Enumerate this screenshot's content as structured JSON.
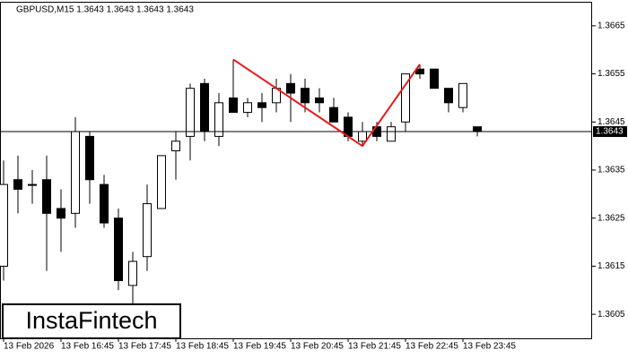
{
  "chart_data": {
    "type": "candlestick",
    "title": "GBPUSD,M15  1.3643 1.3643 1.3643 1.3643",
    "logo": "InstaFintech",
    "categories": [
      "13 Feb 2026",
      null,
      null,
      null,
      "13 Feb 16:45",
      null,
      null,
      null,
      "13 Feb 17:45",
      null,
      null,
      null,
      "13 Feb 18:45",
      null,
      null,
      null,
      "13 Feb 19:45",
      null,
      null,
      null,
      "13 Feb 20:45",
      null,
      null,
      null,
      "13 Feb 21:45",
      null,
      null,
      null,
      "13 Feb 22:45",
      null,
      null,
      null,
      "13 Feb 23:45",
      null
    ],
    "series": [
      {
        "color": "#000000",
        "up_color": "#ffffff",
        "open": [
          1.3615,
          1.3633,
          1.3632,
          1.3633,
          1.3627,
          1.3626,
          1.3642,
          1.3632,
          1.3625,
          1.3611,
          1.3617,
          1.3627,
          1.3639,
          1.3642,
          1.3653,
          1.3642,
          1.365,
          1.3647,
          1.3649,
          1.3649,
          1.3653,
          1.3652,
          1.365,
          1.3648,
          1.3646,
          1.3641,
          1.3644,
          1.3641,
          1.3645,
          1.3656,
          1.3656,
          1.3652,
          1.3648,
          1.3644
        ],
        "high": [
          1.3637,
          1.3638,
          1.3635,
          1.3638,
          1.3631,
          1.3646,
          1.3643,
          1.3634,
          1.3627,
          1.3618,
          1.3632,
          1.3638,
          1.3643,
          1.3653,
          1.3654,
          1.3651,
          1.3658,
          1.365,
          1.3651,
          1.3654,
          1.3655,
          1.3654,
          1.3652,
          1.365,
          1.3647,
          1.3645,
          1.3645,
          1.3645,
          1.3655,
          1.3657,
          1.3656,
          1.3652,
          1.3653,
          1.3644
        ],
        "low": [
          1.3612,
          1.3626,
          1.3628,
          1.3614,
          1.3618,
          1.3623,
          1.3628,
          1.3623,
          1.361,
          1.3607,
          1.3614,
          1.3627,
          1.3633,
          1.3637,
          1.3641,
          1.364,
          1.3647,
          1.3646,
          1.3645,
          1.3647,
          1.3645,
          1.3647,
          1.3647,
          1.3645,
          1.3641,
          1.364,
          1.3641,
          1.3641,
          1.3643,
          1.3654,
          1.3652,
          1.3647,
          1.3647,
          1.3642
        ],
        "close": [
          1.3632,
          1.3631,
          1.3632,
          1.3626,
          1.3625,
          1.3643,
          1.3633,
          1.3624,
          1.3612,
          1.3616,
          1.3628,
          1.3638,
          1.3641,
          1.3652,
          1.3643,
          1.3649,
          1.3647,
          1.3649,
          1.3648,
          1.3652,
          1.3651,
          1.3649,
          1.3649,
          1.3645,
          1.3642,
          1.3643,
          1.3642,
          1.3644,
          1.3655,
          1.3655,
          1.3652,
          1.3649,
          1.3653,
          1.3643
        ]
      }
    ],
    "pattern": {
      "color": "#e8191b",
      "index": [
        16,
        25,
        29
      ],
      "values": [
        1.3658,
        1.364,
        1.3657
      ]
    },
    "last_price": 1.3643,
    "ylim": [
      1.36,
      1.367
    ],
    "yticks": [
      1.3605,
      1.3615,
      1.3625,
      1.3635,
      1.3645,
      1.3655,
      1.3665
    ]
  }
}
